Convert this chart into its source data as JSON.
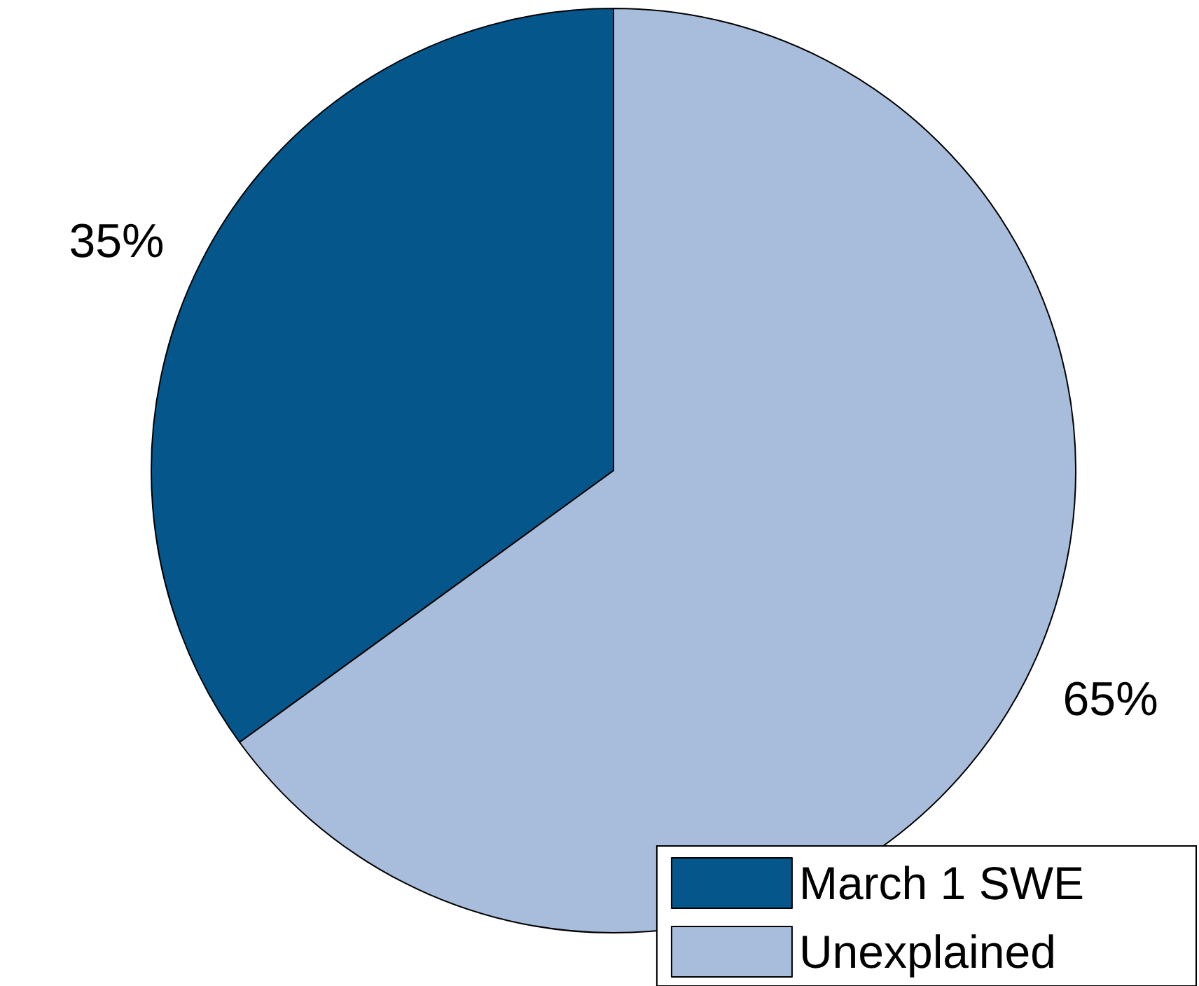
{
  "chart_data": {
    "type": "pie",
    "categories": [
      "March 1 SWE",
      "Unexplained"
    ],
    "values": [
      35,
      65
    ],
    "colors": [
      "#05578b",
      "#a7bddb"
    ],
    "value_labels": [
      "35%",
      "65%"
    ],
    "legend": "bottom right"
  }
}
